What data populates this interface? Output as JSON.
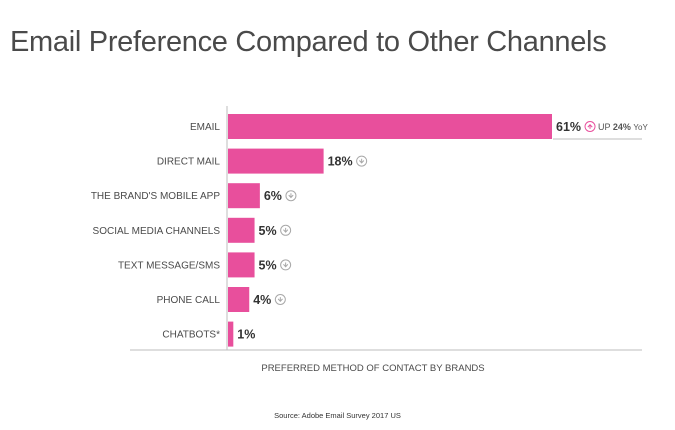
{
  "title": "Email Preference Compared to Other Channels",
  "source": "Source: Adobe Email Survey 2017 US",
  "colors": {
    "bar": "#e84f9c",
    "axis": "#bdbdbd",
    "text": "#4a4a4a",
    "trend": "#e84f9c",
    "trend_neutral": "#a8a8a8"
  },
  "chart_data": {
    "type": "bar",
    "orientation": "horizontal",
    "categories": [
      "EMAIL",
      "DIRECT MAIL",
      "THE BRAND'S MOBILE APP",
      "SOCIAL MEDIA CHANNELS",
      "TEXT MESSAGE/SMS",
      "PHONE CALL",
      "CHATBOTS*"
    ],
    "values": [
      61,
      18,
      6,
      5,
      5,
      4,
      1
    ],
    "value_labels": [
      "61%",
      "18%",
      "6%",
      "5%",
      "5%",
      "4%",
      "1%"
    ],
    "trend_icons": [
      "up-circle-icon",
      "down-circle-icon",
      "down-circle-icon",
      "down-circle-icon",
      "down-circle-icon",
      "down-circle-icon",
      ""
    ],
    "annotation": {
      "category": "EMAIL",
      "prefix": "UP",
      "value": "24%",
      "suffix": "YoY"
    },
    "xlabel": "PREFERRED METHOD OF CONTACT BY BRANDS",
    "xlim": [
      0,
      61
    ],
    "grid": false
  }
}
